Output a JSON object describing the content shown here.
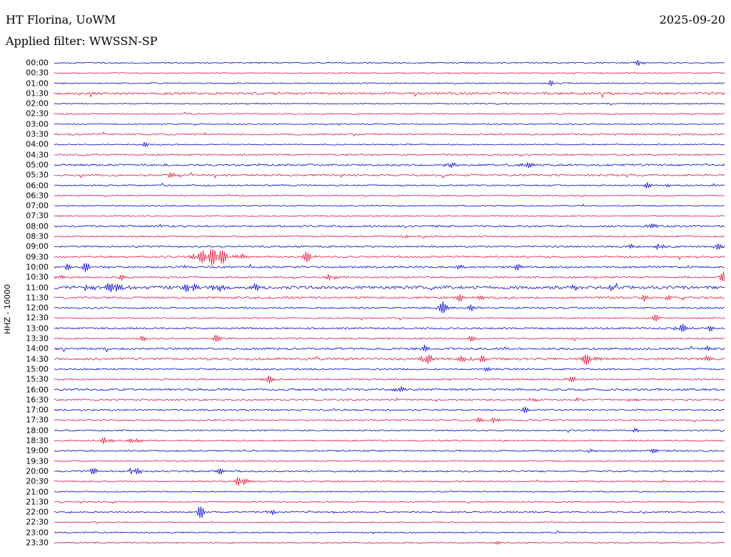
{
  "header": {
    "station": "HT Florina, UoWM",
    "date": "2025-09-20",
    "filter_label": "Applied filter: WWSSN-SP"
  },
  "axis": {
    "ylabel": "HHZ - 10000"
  },
  "colors": {
    "trace_blue": "#0000cd",
    "trace_red": "#dc143c",
    "background": "#ffffff",
    "text": "#000000"
  },
  "chart_data": {
    "type": "seismogram_helicorder",
    "title": "HT Florina, UoWM",
    "date": "2025-09-20",
    "filter_label": "Applied filter: WWSSN-SP",
    "ylabel": "HHZ - 10000",
    "minutes_per_row": 30,
    "rows_per_day": 48,
    "row_color_pattern": [
      "#0000cd",
      "#dc143c"
    ],
    "row_labels": [
      "00:00",
      "00:30",
      "01:00",
      "01:30",
      "02:00",
      "02:30",
      "03:00",
      "03:30",
      "04:00",
      "04:30",
      "05:00",
      "05:30",
      "06:00",
      "06:30",
      "07:00",
      "07:30",
      "08:00",
      "08:30",
      "09:00",
      "09:30",
      "10:00",
      "10:30",
      "11:00",
      "11:30",
      "12:00",
      "12:30",
      "13:00",
      "13:30",
      "14:00",
      "14:30",
      "15:00",
      "15:30",
      "16:00",
      "16:30",
      "17:00",
      "17:30",
      "18:00",
      "18:30",
      "19:00",
      "19:30",
      "20:00",
      "20:30",
      "21:00",
      "21:30",
      "22:00",
      "22:30",
      "23:00",
      "23:30"
    ],
    "row_noise": [
      0.9,
      0.7,
      0.9,
      1.8,
      0.8,
      0.9,
      0.8,
      1.2,
      0.8,
      1.1,
      1.5,
      1.4,
      1.0,
      0.8,
      0.9,
      0.8,
      1.4,
      1.1,
      1.2,
      1.3,
      1.4,
      1.2,
      2.2,
      1.5,
      1.2,
      1.0,
      1.3,
      1.2,
      1.5,
      1.7,
      1.2,
      1.2,
      1.5,
      1.2,
      1.1,
      1.1,
      1.0,
      1.0,
      1.1,
      0.9,
      1.2,
      1.0,
      0.8,
      0.8,
      1.0,
      0.8,
      0.9,
      0.9
    ],
    "events": [
      {
        "row": 0,
        "pos": 0.87,
        "amp": 5,
        "sigma": 3
      },
      {
        "row": 2,
        "pos": 0.74,
        "amp": 4,
        "sigma": 2.5
      },
      {
        "row": 8,
        "pos": 0.135,
        "amp": 3.5,
        "sigma": 2.5
      },
      {
        "row": 10,
        "pos": 0.585,
        "amp": 4,
        "sigma": 4
      },
      {
        "row": 10,
        "pos": 0.7,
        "amp": 4.5,
        "sigma": 5
      },
      {
        "row": 10,
        "pos": 0.925,
        "amp": 3.5,
        "sigma": 3
      },
      {
        "row": 11,
        "pos": 0.175,
        "amp": 4.5,
        "sigma": 4
      },
      {
        "row": 12,
        "pos": 0.88,
        "amp": 4.5,
        "sigma": 3
      },
      {
        "row": 12,
        "pos": 0.91,
        "amp": 3.5,
        "sigma": 2.5
      },
      {
        "row": 16,
        "pos": 0.885,
        "amp": 4.5,
        "sigma": 4
      },
      {
        "row": 17,
        "pos": 0.52,
        "amp": 3,
        "sigma": 3
      },
      {
        "row": 18,
        "pos": 0.86,
        "amp": 4,
        "sigma": 3
      },
      {
        "row": 18,
        "pos": 0.9,
        "amp": 5,
        "sigma": 3
      },
      {
        "row": 18,
        "pos": 0.985,
        "amp": 5.5,
        "sigma": 3
      },
      {
        "row": 19,
        "pos": 0.215,
        "amp": 8,
        "sigma": 8
      },
      {
        "row": 19,
        "pos": 0.24,
        "amp": 10,
        "sigma": 9
      },
      {
        "row": 19,
        "pos": 0.27,
        "amp": 6,
        "sigma": 6
      },
      {
        "row": 19,
        "pos": 0.375,
        "amp": 7,
        "sigma": 4
      },
      {
        "row": 20,
        "pos": 0.02,
        "amp": 5,
        "sigma": 3
      },
      {
        "row": 20,
        "pos": 0.045,
        "amp": 6.5,
        "sigma": 4
      },
      {
        "row": 20,
        "pos": 0.6,
        "amp": 4,
        "sigma": 3
      },
      {
        "row": 20,
        "pos": 0.69,
        "amp": 4.5,
        "sigma": 3
      },
      {
        "row": 21,
        "pos": 0.005,
        "amp": 4.5,
        "sigma": 3
      },
      {
        "row": 21,
        "pos": 0.1,
        "amp": 4,
        "sigma": 3
      },
      {
        "row": 21,
        "pos": 0.41,
        "amp": 5,
        "sigma": 3.5
      },
      {
        "row": 21,
        "pos": 0.995,
        "amp": 7,
        "sigma": 4
      },
      {
        "row": 22,
        "pos": 0.05,
        "amp": 5,
        "sigma": 4
      },
      {
        "row": 22,
        "pos": 0.085,
        "amp": 7,
        "sigma": 6
      },
      {
        "row": 22,
        "pos": 0.2,
        "amp": 6,
        "sigma": 6
      },
      {
        "row": 22,
        "pos": 0.24,
        "amp": 5.5,
        "sigma": 5
      },
      {
        "row": 22,
        "pos": 0.3,
        "amp": 5,
        "sigma": 4
      },
      {
        "row": 22,
        "pos": 0.77,
        "amp": 5,
        "sigma": 4
      },
      {
        "row": 22,
        "pos": 0.83,
        "amp": 4,
        "sigma": 3
      },
      {
        "row": 23,
        "pos": 0.6,
        "amp": 5,
        "sigma": 4
      },
      {
        "row": 23,
        "pos": 0.63,
        "amp": 4.5,
        "sigma": 3
      },
      {
        "row": 23,
        "pos": 0.88,
        "amp": 4.5,
        "sigma": 3
      },
      {
        "row": 23,
        "pos": 0.915,
        "amp": 4,
        "sigma": 3
      },
      {
        "row": 24,
        "pos": 0.575,
        "amp": 9,
        "sigma": 4
      },
      {
        "row": 24,
        "pos": 0.62,
        "amp": 4,
        "sigma": 2.5
      },
      {
        "row": 25,
        "pos": 0.895,
        "amp": 4.5,
        "sigma": 3
      },
      {
        "row": 26,
        "pos": 0.93,
        "amp": 7.5,
        "sigma": 4
      },
      {
        "row": 26,
        "pos": 0.975,
        "amp": 4,
        "sigma": 2.5
      },
      {
        "row": 27,
        "pos": 0.13,
        "amp": 3.5,
        "sigma": 2.5
      },
      {
        "row": 27,
        "pos": 0.24,
        "amp": 6,
        "sigma": 3
      },
      {
        "row": 27,
        "pos": 0.62,
        "amp": 3.5,
        "sigma": 2.5
      },
      {
        "row": 28,
        "pos": 0.55,
        "amp": 5,
        "sigma": 3
      },
      {
        "row": 28,
        "pos": 0.975,
        "amp": 3.5,
        "sigma": 2.5
      },
      {
        "row": 29,
        "pos": 0.55,
        "amp": 7.5,
        "sigma": 5
      },
      {
        "row": 29,
        "pos": 0.605,
        "amp": 5,
        "sigma": 3.5
      },
      {
        "row": 29,
        "pos": 0.635,
        "amp": 5,
        "sigma": 3.5
      },
      {
        "row": 29,
        "pos": 0.79,
        "amp": 7.5,
        "sigma": 5
      },
      {
        "row": 29,
        "pos": 0.97,
        "amp": 4,
        "sigma": 3
      },
      {
        "row": 30,
        "pos": 0.64,
        "amp": 4.5,
        "sigma": 3
      },
      {
        "row": 31,
        "pos": 0.315,
        "amp": 6,
        "sigma": 4
      },
      {
        "row": 31,
        "pos": 0.765,
        "amp": 5.5,
        "sigma": 4
      },
      {
        "row": 32,
        "pos": 0.51,
        "amp": 5,
        "sigma": 4
      },
      {
        "row": 33,
        "pos": 0.71,
        "amp": 4.5,
        "sigma": 3
      },
      {
        "row": 33,
        "pos": 0.78,
        "amp": 3.5,
        "sigma": 2.5
      },
      {
        "row": 33,
        "pos": 0.86,
        "amp": 4.5,
        "sigma": 3
      },
      {
        "row": 34,
        "pos": 0.7,
        "amp": 5,
        "sigma": 3
      },
      {
        "row": 35,
        "pos": 0.63,
        "amp": 4,
        "sigma": 3
      },
      {
        "row": 35,
        "pos": 0.655,
        "amp": 5,
        "sigma": 3
      },
      {
        "row": 36,
        "pos": 0.86,
        "amp": 4,
        "sigma": 3
      },
      {
        "row": 37,
        "pos": 0.075,
        "amp": 4.5,
        "sigma": 4
      },
      {
        "row": 37,
        "pos": 0.115,
        "amp": 4.5,
        "sigma": 4
      },
      {
        "row": 38,
        "pos": 0.8,
        "amp": 3.5,
        "sigma": 2.5
      },
      {
        "row": 38,
        "pos": 0.89,
        "amp": 3.5,
        "sigma": 2.5
      },
      {
        "row": 40,
        "pos": 0.055,
        "amp": 5,
        "sigma": 3.5
      },
      {
        "row": 40,
        "pos": 0.115,
        "amp": 6.5,
        "sigma": 4
      },
      {
        "row": 40,
        "pos": 0.245,
        "amp": 4.5,
        "sigma": 3
      },
      {
        "row": 41,
        "pos": 0.275,
        "amp": 8.5,
        "sigma": 4
      },
      {
        "row": 44,
        "pos": 0.215,
        "amp": 10,
        "sigma": 3
      },
      {
        "row": 44,
        "pos": 0.32,
        "amp": 5,
        "sigma": 3
      },
      {
        "row": 47,
        "pos": 0.655,
        "amp": 3.5,
        "sigma": 2.5
      }
    ]
  }
}
